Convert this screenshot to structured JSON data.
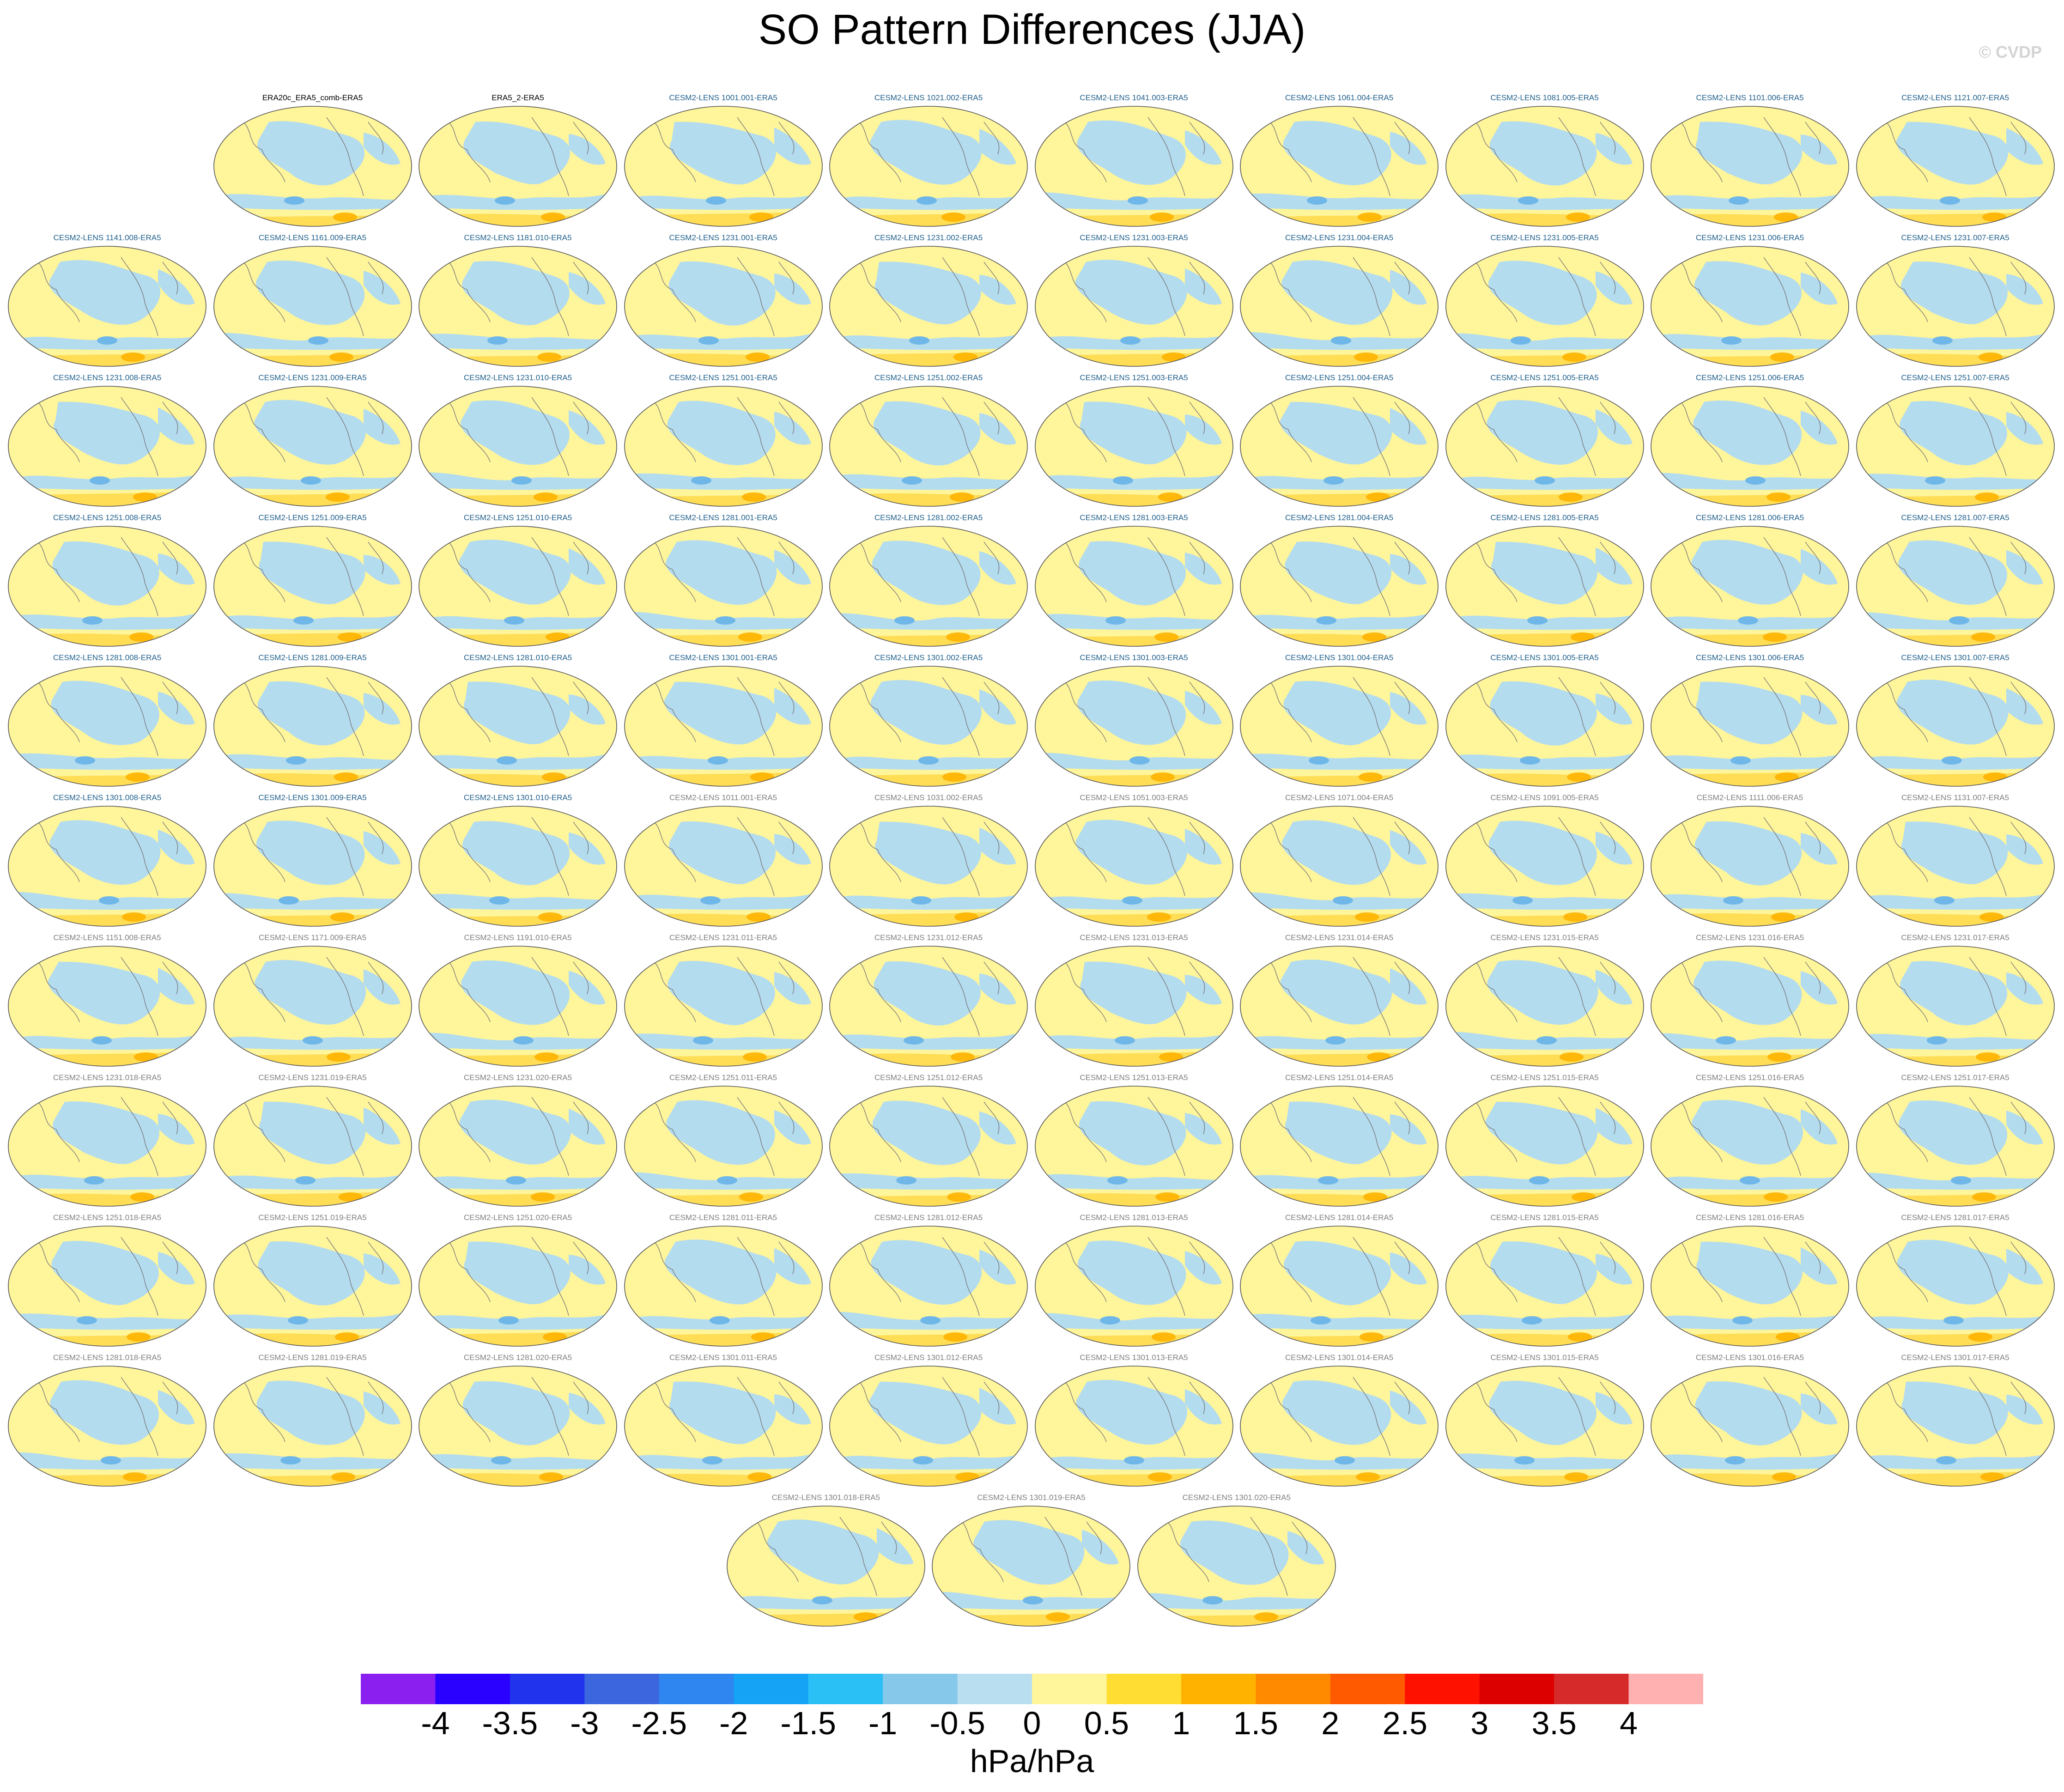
{
  "title": "SO Pattern Differences (JJA)",
  "credit": "© CVDP",
  "colors": {
    "label_obs": "#000000",
    "label_ensemble_a": "#1f5f8b",
    "label_ensemble_b": "#7f7f7f",
    "map_negative": "#b3dcef",
    "map_positive": "#fff59a",
    "coastline": "#7a7a7a"
  },
  "chart_data": {
    "type": "map-panel-grid",
    "variable": "SO pattern difference",
    "season": "JJA",
    "units": "hPa/hPa",
    "panels": [
      {
        "label": "ERA20c_ERA5_comb-ERA5",
        "group": "obs"
      },
      {
        "label": "ERA5_2-ERA5",
        "group": "obs"
      },
      {
        "label": "CESM2-LENS 1001.001-ERA5",
        "group": "a"
      },
      {
        "label": "CESM2-LENS 1021.002-ERA5",
        "group": "a"
      },
      {
        "label": "CESM2-LENS 1041.003-ERA5",
        "group": "a"
      },
      {
        "label": "CESM2-LENS 1061.004-ERA5",
        "group": "a"
      },
      {
        "label": "CESM2-LENS 1081.005-ERA5",
        "group": "a"
      },
      {
        "label": "CESM2-LENS 1101.006-ERA5",
        "group": "a"
      },
      {
        "label": "CESM2-LENS 1121.007-ERA5",
        "group": "a"
      },
      {
        "label": "CESM2-LENS 1141.008-ERA5",
        "group": "a"
      },
      {
        "label": "CESM2-LENS 1161.009-ERA5",
        "group": "a"
      },
      {
        "label": "CESM2-LENS 1181.010-ERA5",
        "group": "a"
      },
      {
        "label": "CESM2-LENS 1231.001-ERA5",
        "group": "a"
      },
      {
        "label": "CESM2-LENS 1231.002-ERA5",
        "group": "a"
      },
      {
        "label": "CESM2-LENS 1231.003-ERA5",
        "group": "a"
      },
      {
        "label": "CESM2-LENS 1231.004-ERA5",
        "group": "a"
      },
      {
        "label": "CESM2-LENS 1231.005-ERA5",
        "group": "a"
      },
      {
        "label": "CESM2-LENS 1231.006-ERA5",
        "group": "a"
      },
      {
        "label": "CESM2-LENS 1231.007-ERA5",
        "group": "a"
      },
      {
        "label": "CESM2-LENS 1231.008-ERA5",
        "group": "a"
      },
      {
        "label": "CESM2-LENS 1231.009-ERA5",
        "group": "a"
      },
      {
        "label": "CESM2-LENS 1231.010-ERA5",
        "group": "a"
      },
      {
        "label": "CESM2-LENS 1251.001-ERA5",
        "group": "a"
      },
      {
        "label": "CESM2-LENS 1251.002-ERA5",
        "group": "a"
      },
      {
        "label": "CESM2-LENS 1251.003-ERA5",
        "group": "a"
      },
      {
        "label": "CESM2-LENS 1251.004-ERA5",
        "group": "a"
      },
      {
        "label": "CESM2-LENS 1251.005-ERA5",
        "group": "a"
      },
      {
        "label": "CESM2-LENS 1251.006-ERA5",
        "group": "a"
      },
      {
        "label": "CESM2-LENS 1251.007-ERA5",
        "group": "a"
      },
      {
        "label": "CESM2-LENS 1251.008-ERA5",
        "group": "a"
      },
      {
        "label": "CESM2-LENS 1251.009-ERA5",
        "group": "a"
      },
      {
        "label": "CESM2-LENS 1251.010-ERA5",
        "group": "a"
      },
      {
        "label": "CESM2-LENS 1281.001-ERA5",
        "group": "a"
      },
      {
        "label": "CESM2-LENS 1281.002-ERA5",
        "group": "a"
      },
      {
        "label": "CESM2-LENS 1281.003-ERA5",
        "group": "a"
      },
      {
        "label": "CESM2-LENS 1281.004-ERA5",
        "group": "a"
      },
      {
        "label": "CESM2-LENS 1281.005-ERA5",
        "group": "a"
      },
      {
        "label": "CESM2-LENS 1281.006-ERA5",
        "group": "a"
      },
      {
        "label": "CESM2-LENS 1281.007-ERA5",
        "group": "a"
      },
      {
        "label": "CESM2-LENS 1281.008-ERA5",
        "group": "a"
      },
      {
        "label": "CESM2-LENS 1281.009-ERA5",
        "group": "a"
      },
      {
        "label": "CESM2-LENS 1281.010-ERA5",
        "group": "a"
      },
      {
        "label": "CESM2-LENS 1301.001-ERA5",
        "group": "a"
      },
      {
        "label": "CESM2-LENS 1301.002-ERA5",
        "group": "a"
      },
      {
        "label": "CESM2-LENS 1301.003-ERA5",
        "group": "a"
      },
      {
        "label": "CESM2-LENS 1301.004-ERA5",
        "group": "a"
      },
      {
        "label": "CESM2-LENS 1301.005-ERA5",
        "group": "a"
      },
      {
        "label": "CESM2-LENS 1301.006-ERA5",
        "group": "a"
      },
      {
        "label": "CESM2-LENS 1301.007-ERA5",
        "group": "a"
      },
      {
        "label": "CESM2-LENS 1301.008-ERA5",
        "group": "a"
      },
      {
        "label": "CESM2-LENS 1301.009-ERA5",
        "group": "a"
      },
      {
        "label": "CESM2-LENS 1301.010-ERA5",
        "group": "a"
      },
      {
        "label": "CESM2-LENS 1011.001-ERA5",
        "group": "b"
      },
      {
        "label": "CESM2-LENS 1031.002-ERA5",
        "group": "b"
      },
      {
        "label": "CESM2-LENS 1051.003-ERA5",
        "group": "b"
      },
      {
        "label": "CESM2-LENS 1071.004-ERA5",
        "group": "b"
      },
      {
        "label": "CESM2-LENS 1091.005-ERA5",
        "group": "b"
      },
      {
        "label": "CESM2-LENS 1111.006-ERA5",
        "group": "b"
      },
      {
        "label": "CESM2-LENS 1131.007-ERA5",
        "group": "b"
      },
      {
        "label": "CESM2-LENS 1151.008-ERA5",
        "group": "b"
      },
      {
        "label": "CESM2-LENS 1171.009-ERA5",
        "group": "b"
      },
      {
        "label": "CESM2-LENS 1191.010-ERA5",
        "group": "b"
      },
      {
        "label": "CESM2-LENS 1231.011-ERA5",
        "group": "b"
      },
      {
        "label": "CESM2-LENS 1231.012-ERA5",
        "group": "b"
      },
      {
        "label": "CESM2-LENS 1231.013-ERA5",
        "group": "b"
      },
      {
        "label": "CESM2-LENS 1231.014-ERA5",
        "group": "b"
      },
      {
        "label": "CESM2-LENS 1231.015-ERA5",
        "group": "b"
      },
      {
        "label": "CESM2-LENS 1231.016-ERA5",
        "group": "b"
      },
      {
        "label": "CESM2-LENS 1231.017-ERA5",
        "group": "b"
      },
      {
        "label": "CESM2-LENS 1231.018-ERA5",
        "group": "b"
      },
      {
        "label": "CESM2-LENS 1231.019-ERA5",
        "group": "b"
      },
      {
        "label": "CESM2-LENS 1231.020-ERA5",
        "group": "b"
      },
      {
        "label": "CESM2-LENS 1251.011-ERA5",
        "group": "b"
      },
      {
        "label": "CESM2-LENS 1251.012-ERA5",
        "group": "b"
      },
      {
        "label": "CESM2-LENS 1251.013-ERA5",
        "group": "b"
      },
      {
        "label": "CESM2-LENS 1251.014-ERA5",
        "group": "b"
      },
      {
        "label": "CESM2-LENS 1251.015-ERA5",
        "group": "b"
      },
      {
        "label": "CESM2-LENS 1251.016-ERA5",
        "group": "b"
      },
      {
        "label": "CESM2-LENS 1251.017-ERA5",
        "group": "b"
      },
      {
        "label": "CESM2-LENS 1251.018-ERA5",
        "group": "b"
      },
      {
        "label": "CESM2-LENS 1251.019-ERA5",
        "group": "b"
      },
      {
        "label": "CESM2-LENS 1251.020-ERA5",
        "group": "b"
      },
      {
        "label": "CESM2-LENS 1281.011-ERA5",
        "group": "b"
      },
      {
        "label": "CESM2-LENS 1281.012-ERA5",
        "group": "b"
      },
      {
        "label": "CESM2-LENS 1281.013-ERA5",
        "group": "b"
      },
      {
        "label": "CESM2-LENS 1281.014-ERA5",
        "group": "b"
      },
      {
        "label": "CESM2-LENS 1281.015-ERA5",
        "group": "b"
      },
      {
        "label": "CESM2-LENS 1281.016-ERA5",
        "group": "b"
      },
      {
        "label": "CESM2-LENS 1281.017-ERA5",
        "group": "b"
      },
      {
        "label": "CESM2-LENS 1281.018-ERA5",
        "group": "b"
      },
      {
        "label": "CESM2-LENS 1281.019-ERA5",
        "group": "b"
      },
      {
        "label": "CESM2-LENS 1281.020-ERA5",
        "group": "b"
      },
      {
        "label": "CESM2-LENS 1301.011-ERA5",
        "group": "b"
      },
      {
        "label": "CESM2-LENS 1301.012-ERA5",
        "group": "b"
      },
      {
        "label": "CESM2-LENS 1301.013-ERA5",
        "group": "b"
      },
      {
        "label": "CESM2-LENS 1301.014-ERA5",
        "group": "b"
      },
      {
        "label": "CESM2-LENS 1301.015-ERA5",
        "group": "b"
      },
      {
        "label": "CESM2-LENS 1301.016-ERA5",
        "group": "b"
      },
      {
        "label": "CESM2-LENS 1301.017-ERA5",
        "group": "b"
      },
      {
        "label": "CESM2-LENS 1301.018-ERA5",
        "group": "b"
      },
      {
        "label": "CESM2-LENS 1301.019-ERA5",
        "group": "b"
      },
      {
        "label": "CESM2-LENS 1301.020-ERA5",
        "group": "b"
      }
    ],
    "colorbar": {
      "label": "hPa/hPa",
      "tick_labels": [
        "-4",
        "-3.5",
        "-3",
        "-2.5",
        "-2",
        "-1.5",
        "-1",
        "-0.5",
        "0",
        "0.5",
        "1",
        "1.5",
        "2",
        "2.5",
        "3",
        "3.5",
        "4"
      ],
      "colors": [
        "#8a1ff0",
        "#2a00ff",
        "#2233ee",
        "#3b66dd",
        "#2f86f0",
        "#14a3f5",
        "#2bc0f5",
        "#86c8ea",
        "#b8def0",
        "#fff59a",
        "#ffdd33",
        "#ffb300",
        "#ff8a00",
        "#ff5a00",
        "#ff1100",
        "#dd0000",
        "#d62a2a",
        "#ffb0b0"
      ]
    }
  }
}
